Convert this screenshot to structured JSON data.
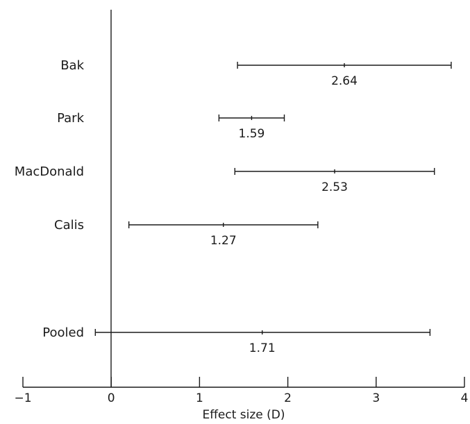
{
  "chart_data": {
    "type": "forest",
    "xlabel": "Effect size (D)",
    "xlim": [
      -1,
      4
    ],
    "x_ticks": [
      -1,
      0,
      1,
      2,
      3,
      4
    ],
    "x_tick_labels": [
      "−1",
      "0",
      "1",
      "2",
      "3",
      "4"
    ],
    "reference_line_x": 0,
    "grid": false,
    "studies": [
      {
        "name": "Bak",
        "estimate": 2.64,
        "ci_low": 1.43,
        "ci_high": 3.85,
        "label": "2.64"
      },
      {
        "name": "Park",
        "estimate": 1.59,
        "ci_low": 1.22,
        "ci_high": 1.96,
        "label": "1.59"
      },
      {
        "name": "MacDonald",
        "estimate": 2.53,
        "ci_low": 1.4,
        "ci_high": 3.66,
        "label": "2.53"
      },
      {
        "name": "Calis",
        "estimate": 1.27,
        "ci_low": 0.2,
        "ci_high": 2.34,
        "label": "1.27"
      }
    ],
    "pooled": {
      "name": "Pooled",
      "estimate": 1.71,
      "ci_low": -0.18,
      "ci_high": 3.61,
      "label": "1.71"
    }
  }
}
